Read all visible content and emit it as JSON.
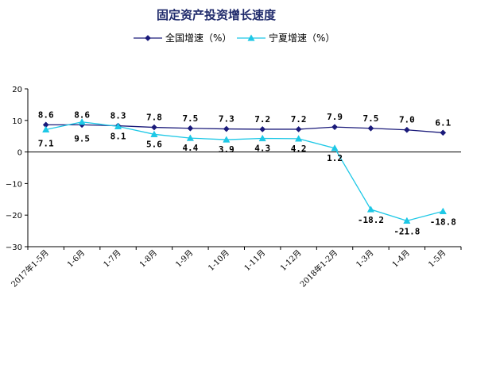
{
  "chart_data": {
    "type": "line",
    "title": "固定资产投资增长速度",
    "categories": [
      "2017年1-5月",
      "1-6月",
      "1-7月",
      "1-8月",
      "1-9月",
      "1-10月",
      "1-11月",
      "1-12月",
      "2018年1-2月",
      "1-3月",
      "1-4月",
      "1-5月"
    ],
    "series": [
      {
        "name": "全国增速（%）",
        "color": "#1a1a7a",
        "marker": "diamond",
        "values": [
          8.6,
          8.6,
          8.3,
          7.8,
          7.5,
          7.3,
          7.2,
          7.2,
          7.9,
          7.5,
          7.0,
          6.1
        ],
        "labels": [
          "8.6",
          "8.6",
          "8.3",
          "7.8",
          "7.5",
          "7.3",
          "7.2",
          "7.2",
          "7.9",
          "7.5",
          "7.0",
          "6.1"
        ]
      },
      {
        "name": "宁夏增速（%）",
        "color": "#1ec8e6",
        "marker": "triangle",
        "values": [
          7.1,
          9.5,
          8.1,
          5.6,
          4.4,
          3.9,
          4.3,
          4.2,
          1.2,
          -18.2,
          -21.8,
          -18.8
        ],
        "labels": [
          "7.1",
          "9.5",
          "8.1",
          "5.6",
          "4.4",
          "3.9",
          "4.3",
          "4.2",
          "1.2",
          "-18.2",
          "-21.8",
          "-18.8"
        ]
      }
    ],
    "ylim": [
      -30,
      20
    ],
    "yticks": [
      20,
      10,
      0,
      -10,
      -20,
      -30
    ],
    "ytick_labels": [
      "20",
      "10",
      "0",
      "−10",
      "−20",
      "−30"
    ],
    "legend_position": "top",
    "grid": false
  }
}
